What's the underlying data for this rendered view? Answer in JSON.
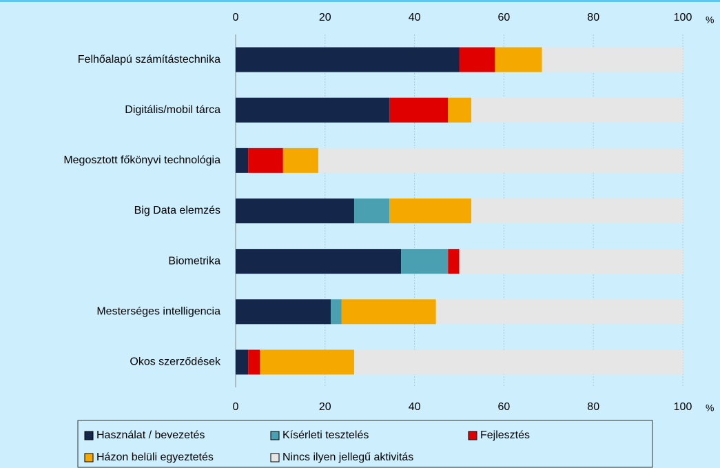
{
  "chart_data": {
    "type": "stacked-barh",
    "categories": [
      "Felhőalapú számítástechnika",
      "Digitális/mobil tárca",
      "Megosztott főkönyvi technológia",
      "Big Data elemzés",
      "Biometrika",
      "Mesterséges intelligencia",
      "Okos szerződések"
    ],
    "series": [
      {
        "name": "Használat / bevezetés",
        "color": "#14264a",
        "values": [
          50,
          34.4,
          2.8,
          26.5,
          37,
          21.3,
          2.8
        ]
      },
      {
        "name": "Kísérleti tesztelés",
        "color": "#4aa0b0",
        "values": [
          0,
          0,
          0,
          7.9,
          10.5,
          2.4,
          0
        ]
      },
      {
        "name": "Fejlesztés",
        "color": "#e00000",
        "values": [
          8,
          13.1,
          7.8,
          0,
          2.5,
          0,
          2.6
        ]
      },
      {
        "name": "Házon belüli egyeztetés",
        "color": "#f5a800",
        "values": [
          10.5,
          5.2,
          7.9,
          18.3,
          0,
          21.1,
          21.1
        ]
      },
      {
        "name": "Nincs ilyen jellegű aktivitás",
        "color": "#e6e6e6",
        "values": [
          31.5,
          47.3,
          81.5,
          47.3,
          50,
          55.2,
          73.5
        ]
      }
    ],
    "xlim": [
      0,
      100
    ],
    "xticks": [
      0,
      20,
      40,
      60,
      80,
      100
    ],
    "unit": "%",
    "grid": true
  }
}
